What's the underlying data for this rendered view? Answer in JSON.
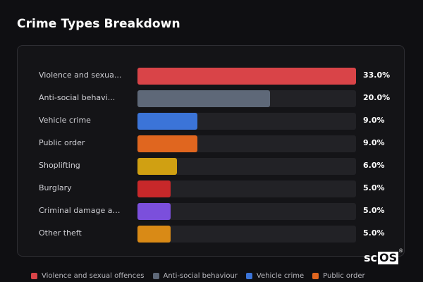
{
  "title": "Crime Types Breakdown",
  "colors": {
    "background": "#0f0f12",
    "card": "#141417",
    "track": "#222226"
  },
  "logo": {
    "text_plain": "sc",
    "text_boxed": "OS",
    "mark": "®"
  },
  "chart_data": {
    "type": "bar",
    "orientation": "horizontal",
    "categories": [
      "Violence and sexua...",
      "Anti-social behavi...",
      "Vehicle crime",
      "Public order",
      "Shoplifting",
      "Burglary",
      "Criminal damage an...",
      "Other theft"
    ],
    "values": [
      33.0,
      20.0,
      9.0,
      9.0,
      6.0,
      5.0,
      5.0,
      5.0
    ],
    "value_labels": [
      "33.0%",
      "20.0%",
      "9.0%",
      "9.0%",
      "6.0%",
      "5.0%",
      "5.0%",
      "5.0%"
    ],
    "colors": [
      "#d94448",
      "#5e6878",
      "#3b74d8",
      "#e0661f",
      "#d0a012",
      "#c8282a",
      "#7b4fdc",
      "#d98a16"
    ],
    "xlim": [
      0,
      33.0
    ],
    "grid": false,
    "legend": {
      "position": "bottom",
      "entries": [
        {
          "label": "Violence and sexual offences",
          "color": "#d94448"
        },
        {
          "label": "Anti-social behaviour",
          "color": "#5e6878"
        },
        {
          "label": "Vehicle crime",
          "color": "#3b74d8"
        },
        {
          "label": "Public order",
          "color": "#e0661f"
        }
      ]
    }
  }
}
